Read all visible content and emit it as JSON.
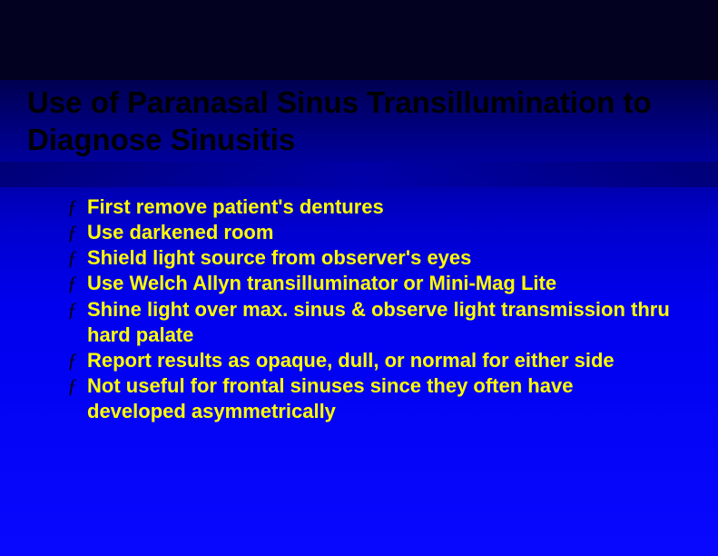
{
  "slide": {
    "title": "Use of Paranasal Sinus Transillumination to Diagnose Sinusitis",
    "bullet_marker": "ƒ",
    "bullets": [
      "First remove patient's dentures",
      "Use darkened room",
      "Shield light source from observer's eyes",
      "Use Welch Allyn transilluminator or Mini-Mag Lite",
      "Shine light over max. sinus & observe light transmission thru hard palate",
      "Report results as opaque, dull, or normal for either side",
      "Not useful for frontal sinuses since they often have developed asymmetrically"
    ]
  },
  "style": {
    "title_color": "#000000",
    "title_fontsize": 33,
    "title_fontweight": "bold",
    "bullet_text_color": "#ffff00",
    "bullet_text_fontsize": 22,
    "bullet_text_fontweight": "bold",
    "bullet_marker_color": "#000000",
    "background_gradient_top": "#000033",
    "background_gradient_bottom": "#0808ff",
    "dark_band_color": "#020220",
    "slide_width": 791,
    "slide_height": 612
  }
}
